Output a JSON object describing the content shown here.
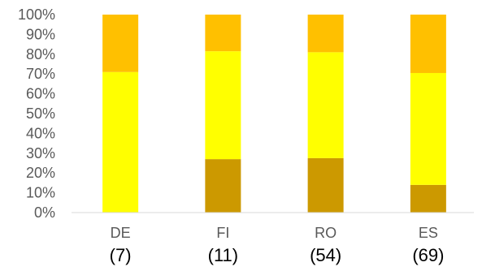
{
  "chart_data": {
    "type": "bar",
    "stacked": true,
    "percent_stacked": true,
    "categories": [
      "DE",
      "FI",
      "RO",
      "ES"
    ],
    "sample_sizes": [
      "(7)",
      "(11)",
      "(54)",
      "(69)"
    ],
    "series": [
      {
        "values": [
          0,
          27,
          27.5,
          14
        ],
        "color": "#CC9900"
      },
      {
        "values": [
          71,
          54.5,
          53.5,
          56.5
        ],
        "color": "#FFFF00"
      },
      {
        "values": [
          29,
          18.5,
          19,
          29.5
        ],
        "color": "#FFC000"
      }
    ],
    "ylim": [
      0,
      100
    ],
    "y_ticks": [
      "0%",
      "10%",
      "20%",
      "30%",
      "40%",
      "50%",
      "60%",
      "70%",
      "80%",
      "90%",
      "100%"
    ],
    "grid": false,
    "legend": "none",
    "title": "",
    "xlabel": "",
    "ylabel": ""
  }
}
